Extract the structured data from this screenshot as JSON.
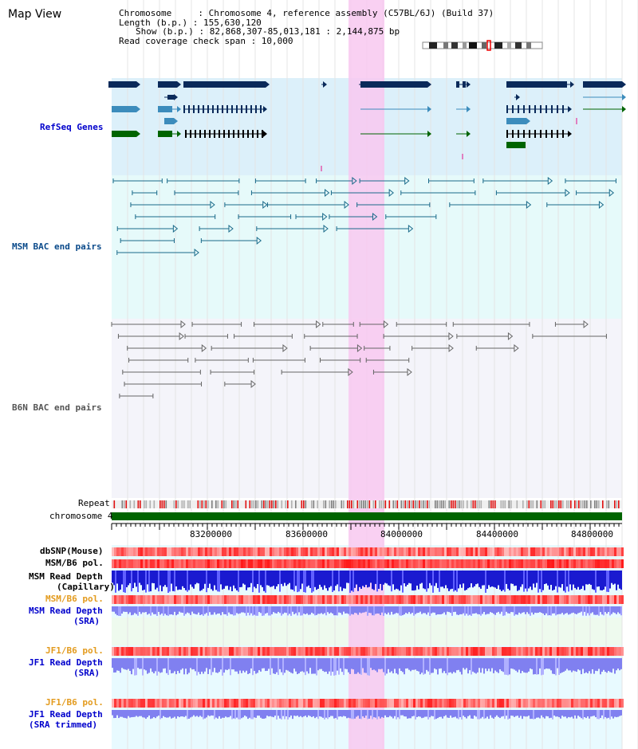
{
  "title": "Map View",
  "header": [
    "Chromosome     : Chromosome 4, reference assembly (C57BL/6J) (Build 37)",
    "Length (b.p.) : 155,630,120",
    "Show (b.p.) : 82,868,307-85,013,181 : 2,144,875 bp",
    "Read coverage check span : 10,000"
  ],
  "tracks": {
    "refseq": "RefSeq Genes",
    "msm_bac": "MSM BAC end pairs",
    "b6n_bac": "B6N BAC end pairs",
    "repeat": "Repeat",
    "chromosome": "chromosome 4",
    "dbsnp": "dbSNP(Mouse)",
    "msm_b6_pol_1": "MSM/B6 pol.",
    "msm_read_depth_cap_1": "MSM Read Depth",
    "msm_read_depth_cap_2": "(Capillary)",
    "msm_b6_pol_2": "MSM/B6 pol.",
    "msm_read_depth_sra_1": "MSM Read Depth",
    "msm_read_depth_sra_2": "(SRA)",
    "jf1_b6_pol_1": "JF1/B6 pol.",
    "jf1_read_depth_1": "JF1 Read Depth",
    "jf1_read_depth_2": "(SRA)",
    "jf1_b6_pol_2": "JF1/B6 pol.",
    "jf1_trimmed_1": "JF1 Read Depth",
    "jf1_trimmed_2": "(SRA trimmed)"
  },
  "ticks": [
    "83200000",
    "83600000",
    "84000000",
    "84400000",
    "84800000"
  ],
  "colors": {
    "refseq_bg": "#dcf0fa",
    "msm_bg": "#e6fafa",
    "b6n_bg": "#f4f4fa",
    "highlight": "#f8c8f0",
    "gene_navy": "#0a2a5a",
    "gene_blue": "#3c8cbc",
    "gene_green": "#006400",
    "msm_line": "#1a6a8a",
    "b6n_line": "#666666",
    "chrom_green": "#006400",
    "depth_blue": "#1a1ad0",
    "depth_light": "#8080f0"
  }
}
